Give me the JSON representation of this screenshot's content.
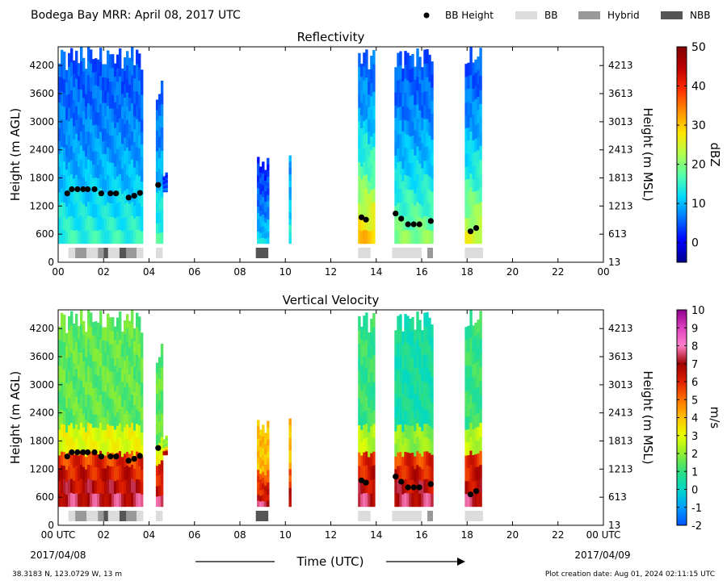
{
  "header": {
    "title": "Bodega Bay MRR:  April 08, 2017 UTC",
    "legend": [
      {
        "label": "BB Height",
        "kind": "dot",
        "color": "#000000"
      },
      {
        "label": "BB",
        "kind": "box",
        "color": "#dcdcdc"
      },
      {
        "label": "Hybrid",
        "kind": "box",
        "color": "#999999"
      },
      {
        "label": "NBB",
        "kind": "box",
        "color": "#555555"
      }
    ]
  },
  "footer": {
    "location": "38.3183 N, 123.0729 W, 13 m",
    "created": "Plot creation date: Aug 01, 2024 02:11:15 UTC",
    "xlabel": "Time (UTC)",
    "start_date": "2017/04/08",
    "end_date": "2017/04/09"
  },
  "chart_data": [
    {
      "type": "heatmap",
      "title": "Reflectivity",
      "ylabel": "Height (m AGL)",
      "ylabel_right": "Height (m MSL)",
      "xlim": [
        0,
        24
      ],
      "ylim": [
        0,
        4600
      ],
      "xticks": [
        "00",
        "02",
        "04",
        "06",
        "08",
        "10",
        "12",
        "14",
        "16",
        "18",
        "20",
        "22",
        "00"
      ],
      "yticks": [
        0,
        600,
        1200,
        1800,
        2400,
        3000,
        3600,
        4200
      ],
      "yticks_right": [
        13,
        613,
        1213,
        1813,
        2413,
        3013,
        3613,
        4213
      ],
      "colorbar": {
        "label": "dBZ",
        "min": -5,
        "max": 50,
        "ticks": [
          0,
          10,
          20,
          30,
          40,
          50
        ],
        "colors": [
          "#00008f",
          "#0000ff",
          "#0070ff",
          "#00d8ff",
          "#50ffaf",
          "#b0ff50",
          "#ffe600",
          "#ff9000",
          "#ff3000",
          "#c00000",
          "#800000"
        ]
      },
      "palette": "jet",
      "echo_spans": [
        {
          "start": 0.0,
          "end": 3.7,
          "top": 4600,
          "bottom": 400,
          "core": 15,
          "edge": 5
        },
        {
          "start": 4.3,
          "end": 4.6,
          "top": 3900,
          "bottom": 400,
          "core": 16,
          "edge": 6
        },
        {
          "start": 4.6,
          "end": 4.75,
          "top": 2200,
          "bottom": 1500,
          "core": 6,
          "edge": 2
        },
        {
          "start": 8.75,
          "end": 9.25,
          "top": 2300,
          "bottom": 400,
          "core": 12,
          "edge": 3
        },
        {
          "start": 10.15,
          "end": 10.25,
          "top": 2600,
          "bottom": 400,
          "core": 15,
          "edge": 8
        },
        {
          "start": 13.2,
          "end": 13.9,
          "top": 4600,
          "bottom": 400,
          "core": 30,
          "edge": 6
        },
        {
          "start": 14.8,
          "end": 16.5,
          "top": 4600,
          "bottom": 400,
          "core": 20,
          "edge": 5
        },
        {
          "start": 17.9,
          "end": 18.6,
          "top": 4600,
          "bottom": 400,
          "core": 25,
          "edge": 5
        }
      ],
      "bright_band_heights": {
        "x": [
          0.4,
          0.6,
          0.85,
          1.1,
          1.3,
          1.6,
          1.9,
          2.3,
          2.55,
          3.1,
          3.35,
          3.6,
          4.4,
          13.35,
          13.55,
          14.85,
          15.1,
          15.4,
          15.65,
          15.9,
          16.4,
          18.15,
          18.4
        ],
        "y": [
          1470,
          1560,
          1560,
          1560,
          1560,
          1560,
          1470,
          1470,
          1470,
          1380,
          1420,
          1480,
          1650,
          960,
          910,
          1040,
          930,
          810,
          810,
          810,
          880,
          660,
          730
        ]
      },
      "bb_type_segments": [
        {
          "start": 0.45,
          "end": 0.75,
          "type": "BB"
        },
        {
          "start": 0.75,
          "end": 1.25,
          "type": "Hybrid"
        },
        {
          "start": 1.25,
          "end": 1.75,
          "type": "BB"
        },
        {
          "start": 1.75,
          "end": 2.0,
          "type": "Hybrid"
        },
        {
          "start": 2.0,
          "end": 2.2,
          "type": "NBB"
        },
        {
          "start": 2.2,
          "end": 2.7,
          "type": "BB"
        },
        {
          "start": 2.7,
          "end": 3.0,
          "type": "NBB"
        },
        {
          "start": 3.0,
          "end": 3.45,
          "type": "Hybrid"
        },
        {
          "start": 3.45,
          "end": 3.75,
          "type": "BB"
        },
        {
          "start": 4.3,
          "end": 4.6,
          "type": "BB"
        },
        {
          "start": 8.7,
          "end": 9.25,
          "type": "NBB"
        },
        {
          "start": 13.2,
          "end": 13.75,
          "type": "BB"
        },
        {
          "start": 14.7,
          "end": 16.0,
          "type": "BB"
        },
        {
          "start": 16.25,
          "end": 16.5,
          "type": "Hybrid"
        },
        {
          "start": 17.9,
          "end": 18.7,
          "type": "BB"
        }
      ]
    },
    {
      "type": "heatmap",
      "title": "Vertical Velocity",
      "ylabel": "Height (m AGL)",
      "ylabel_right": "Height (m MSL)",
      "xlim": [
        0,
        24
      ],
      "ylim": [
        0,
        4600
      ],
      "xticks": [
        "00 UTC",
        "02",
        "04",
        "06",
        "08",
        "10",
        "12",
        "14",
        "16",
        "18",
        "20",
        "22",
        "00 UTC"
      ],
      "yticks": [
        0,
        600,
        1200,
        1800,
        2400,
        3000,
        3600,
        4200
      ],
      "yticks_right": [
        13,
        613,
        1213,
        1813,
        2413,
        3013,
        3613,
        4213
      ],
      "colorbar": {
        "label": "m/s",
        "min": -2,
        "max": 10,
        "ticks": [
          -2,
          -1,
          0,
          1,
          2,
          3,
          4,
          5,
          6,
          7,
          8,
          9,
          10
        ],
        "colors": [
          "#0050ff",
          "#00a0ff",
          "#00d8c8",
          "#30e080",
          "#90ee30",
          "#e8ff00",
          "#ffc000",
          "#ff7000",
          "#e02000",
          "#a00000",
          "#ff80c8",
          "#e040c0",
          "#900090"
        ]
      },
      "palette": "velocity",
      "echo_spans": [
        {
          "start": 0.0,
          "end": 3.7,
          "top": 4600,
          "bottom": 400,
          "core": 1.5,
          "edge": 1.0
        },
        {
          "start": 4.3,
          "end": 4.6,
          "top": 3900,
          "bottom": 400,
          "core": 1.5,
          "edge": 1.0
        },
        {
          "start": 4.6,
          "end": 4.75,
          "top": 2200,
          "bottom": 1500,
          "core": 2,
          "edge": 2
        },
        {
          "start": 8.75,
          "end": 9.25,
          "top": 2300,
          "bottom": 400,
          "core": 4,
          "edge": 2.5
        },
        {
          "start": 10.15,
          "end": 10.25,
          "top": 2600,
          "bottom": 400,
          "core": 4,
          "edge": 3
        },
        {
          "start": 13.2,
          "end": 13.9,
          "top": 4600,
          "bottom": 400,
          "core": 1.0,
          "edge": 1.5
        },
        {
          "start": 14.8,
          "end": 16.5,
          "top": 4600,
          "bottom": 400,
          "core": 0.5,
          "edge": 1.2
        },
        {
          "start": 17.9,
          "end": 18.6,
          "top": 4600,
          "bottom": 400,
          "core": 1.0,
          "edge": 1.5
        }
      ],
      "bright_band_heights": {
        "x": [
          0.4,
          0.6,
          0.85,
          1.1,
          1.3,
          1.6,
          1.9,
          2.3,
          2.55,
          3.1,
          3.35,
          3.6,
          4.4,
          13.35,
          13.55,
          14.85,
          15.1,
          15.4,
          15.65,
          15.9,
          16.4,
          18.15,
          18.4
        ],
        "y": [
          1470,
          1560,
          1560,
          1560,
          1560,
          1560,
          1470,
          1470,
          1470,
          1380,
          1420,
          1480,
          1650,
          960,
          910,
          1040,
          930,
          810,
          810,
          810,
          880,
          660,
          730
        ]
      },
      "bb_type_segments": [
        {
          "start": 0.45,
          "end": 0.75,
          "type": "BB"
        },
        {
          "start": 0.75,
          "end": 1.25,
          "type": "Hybrid"
        },
        {
          "start": 1.25,
          "end": 1.75,
          "type": "BB"
        },
        {
          "start": 1.75,
          "end": 2.0,
          "type": "Hybrid"
        },
        {
          "start": 2.0,
          "end": 2.2,
          "type": "NBB"
        },
        {
          "start": 2.2,
          "end": 2.7,
          "type": "BB"
        },
        {
          "start": 2.7,
          "end": 3.0,
          "type": "NBB"
        },
        {
          "start": 3.0,
          "end": 3.45,
          "type": "Hybrid"
        },
        {
          "start": 3.45,
          "end": 3.75,
          "type": "BB"
        },
        {
          "start": 4.3,
          "end": 4.6,
          "type": "BB"
        },
        {
          "start": 8.7,
          "end": 9.25,
          "type": "NBB"
        },
        {
          "start": 13.2,
          "end": 13.75,
          "type": "BB"
        },
        {
          "start": 14.7,
          "end": 16.0,
          "type": "BB"
        },
        {
          "start": 16.25,
          "end": 16.5,
          "type": "Hybrid"
        },
        {
          "start": 17.9,
          "end": 18.7,
          "type": "BB"
        }
      ]
    }
  ]
}
